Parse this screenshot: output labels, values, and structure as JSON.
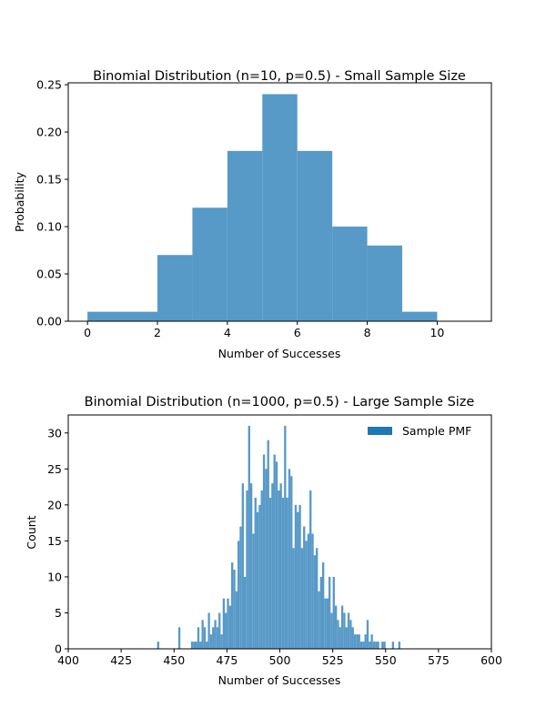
{
  "chart_data": [
    {
      "type": "bar",
      "title": "Binomial Distribution (n=10, p=0.5) - Small Sample Size",
      "xlabel": "Number of Successes",
      "ylabel": "Probability",
      "xlim": [
        -0.55,
        11.55
      ],
      "ylim": [
        0,
        0.252
      ],
      "xticks": [
        0,
        2,
        4,
        6,
        8,
        10
      ],
      "yticks": [
        0.0,
        0.05,
        0.1,
        0.15,
        0.2,
        0.25
      ],
      "ytick_labels": [
        "0.00",
        "0.05",
        "0.10",
        "0.15",
        "0.20",
        "0.25"
      ],
      "bar_color": "#5799c7",
      "bins": [
        {
          "start": 0,
          "end": 2,
          "value": 0.01
        },
        {
          "start": 2,
          "end": 3,
          "value": 0.07
        },
        {
          "start": 3,
          "end": 4,
          "value": 0.12
        },
        {
          "start": 4,
          "end": 5,
          "value": 0.18
        },
        {
          "start": 5,
          "end": 6,
          "value": 0.24
        },
        {
          "start": 6,
          "end": 7,
          "value": 0.18
        },
        {
          "start": 7,
          "end": 8,
          "value": 0.1
        },
        {
          "start": 8,
          "end": 9,
          "value": 0.08
        },
        {
          "start": 9,
          "end": 10,
          "value": 0.01
        }
      ],
      "grid": false
    },
    {
      "type": "bar",
      "title": "Binomial Distribution (n=1000, p=0.5) - Large Sample Size",
      "xlabel": "Number of Successes",
      "ylabel": "Count",
      "xlim": [
        400,
        600
      ],
      "ylim": [
        0,
        32.5
      ],
      "xticks": [
        400,
        425,
        450,
        475,
        500,
        525,
        550,
        575,
        600
      ],
      "yticks": [
        0,
        5,
        10,
        15,
        20,
        25,
        30
      ],
      "bar_color": "#5799c7",
      "legend": {
        "label": "Sample PMF",
        "color": "#1f77b4",
        "position": "top-right"
      },
      "x": [
        442,
        452,
        458,
        459,
        460,
        461,
        462,
        463,
        464,
        465,
        466,
        467,
        468,
        469,
        470,
        471,
        472,
        473,
        474,
        475,
        476,
        477,
        478,
        479,
        480,
        481,
        482,
        483,
        484,
        485,
        486,
        487,
        488,
        489,
        490,
        491,
        492,
        493,
        494,
        495,
        496,
        497,
        498,
        499,
        500,
        501,
        502,
        503,
        504,
        505,
        506,
        507,
        508,
        509,
        510,
        511,
        512,
        513,
        514,
        515,
        516,
        517,
        518,
        519,
        520,
        521,
        522,
        523,
        524,
        525,
        526,
        527,
        528,
        529,
        530,
        531,
        532,
        533,
        534,
        535,
        536,
        537,
        538,
        539,
        540,
        541,
        542,
        543,
        544,
        545,
        546,
        548,
        549,
        553,
        556
      ],
      "values": [
        1,
        3,
        1,
        1,
        1,
        3,
        1,
        4,
        3,
        1,
        5,
        2,
        3,
        4,
        3,
        5,
        2,
        7,
        5,
        7,
        6,
        12,
        11,
        8,
        15,
        17,
        23,
        10,
        22,
        31,
        23,
        16,
        21,
        19,
        20,
        22,
        27,
        25,
        29,
        21,
        23,
        27,
        26,
        22,
        23,
        21,
        31,
        21,
        25,
        24,
        14,
        20,
        19,
        20,
        14,
        17,
        15,
        16,
        22,
        16,
        13,
        14,
        8,
        10,
        12,
        7,
        7,
        10,
        5,
        10,
        6,
        4,
        3,
        6,
        5,
        3,
        5,
        4,
        3,
        2,
        2,
        2,
        1,
        1,
        2,
        4,
        1,
        2,
        1,
        1,
        1,
        1,
        1,
        1,
        1
      ],
      "grid": false
    }
  ]
}
